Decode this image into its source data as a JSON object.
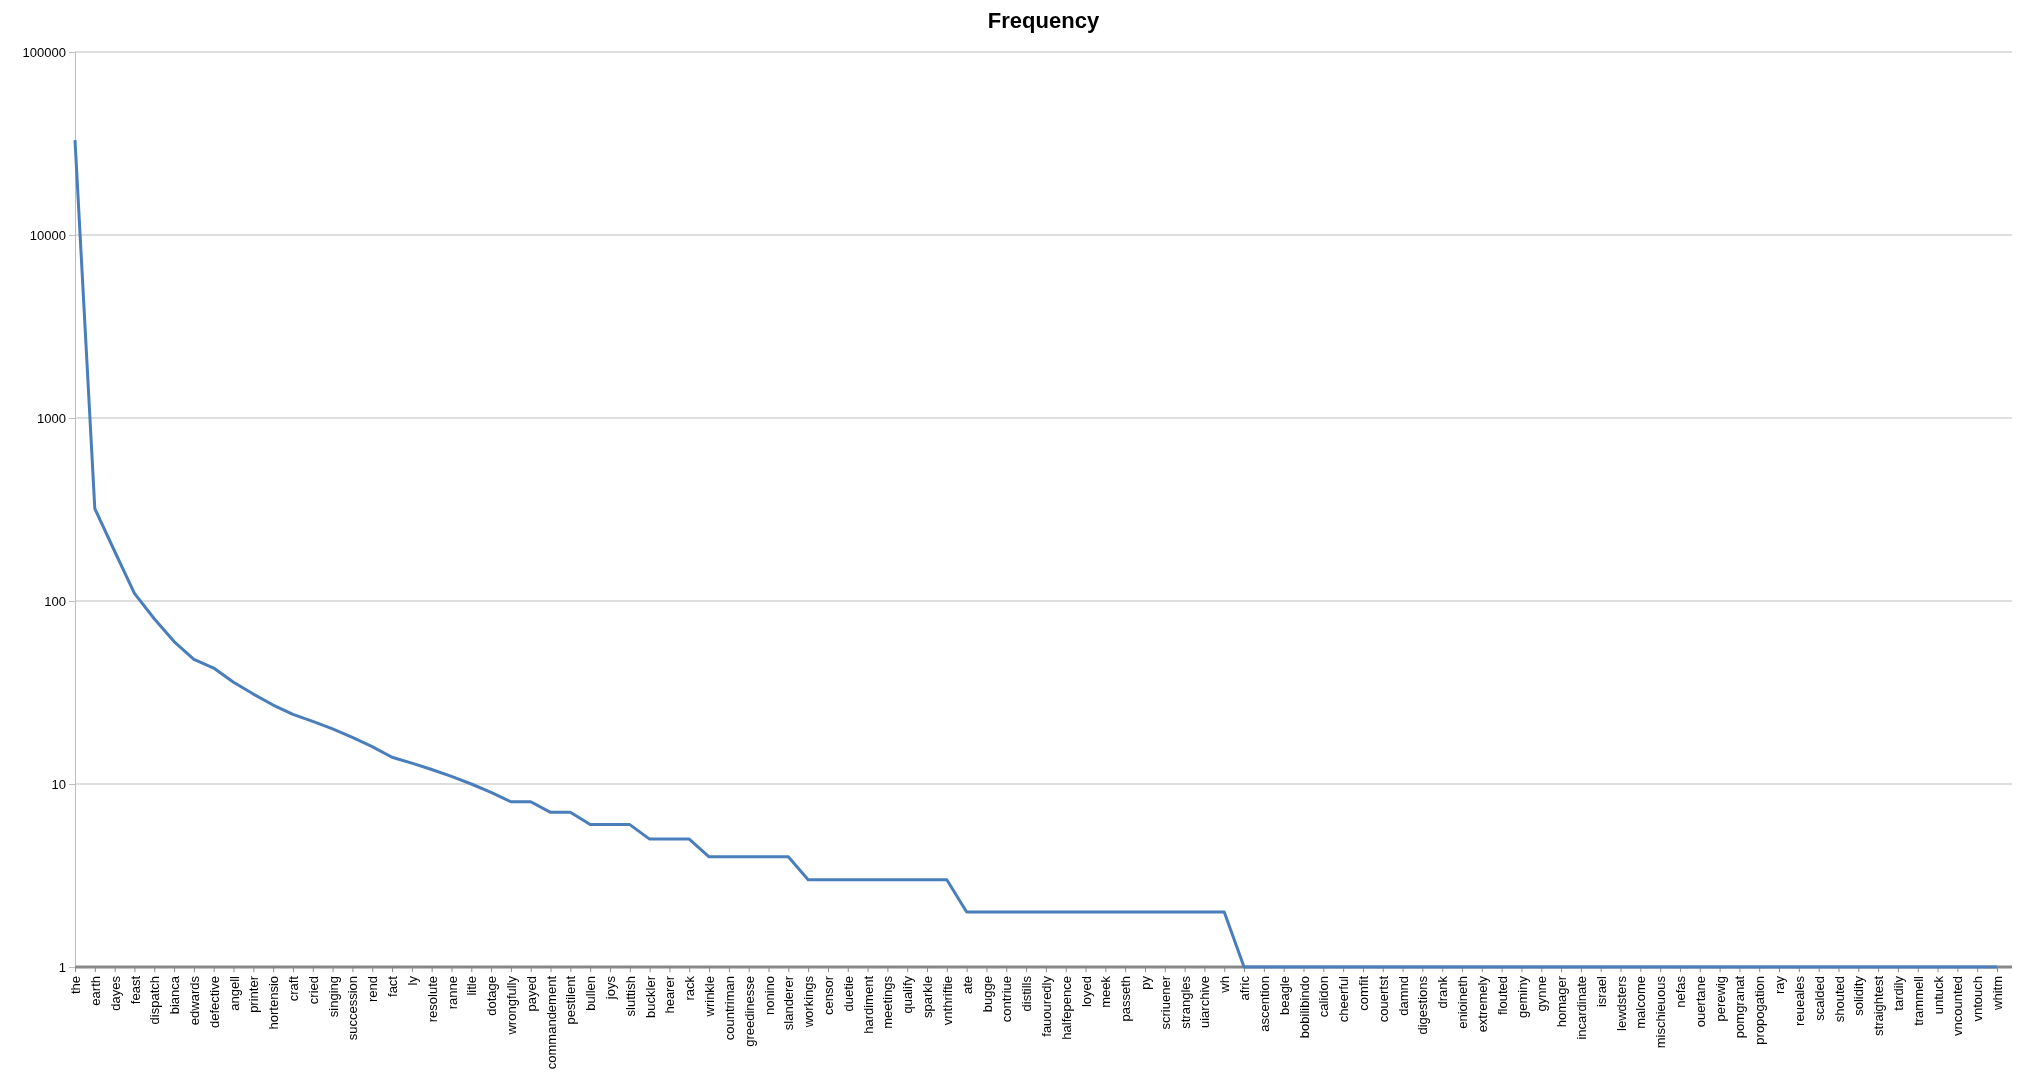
{
  "chart_data": {
    "type": "line",
    "title": "Frequency",
    "categories": [
      "the",
      "earth",
      "dayes",
      "feast",
      "dispatch",
      "bianca",
      "edwards",
      "defective",
      "angell",
      "printer",
      "hortensio",
      "craft",
      "cried",
      "singing",
      "succession",
      "rend",
      "fact",
      "ly",
      "resolute",
      "ranne",
      "litle",
      "dotage",
      "wrongfully",
      "payed",
      "commandement",
      "pestilent",
      "bullen",
      "joys",
      "sluttish",
      "buckler",
      "hearer",
      "rack",
      "wrinkle",
      "countriman",
      "greedinesse",
      "nonino",
      "slanderer",
      "workings",
      "censor",
      "duetie",
      "hardiment",
      "meetings",
      "qualify",
      "sparkle",
      "vnthriftie",
      "ate",
      "bugge",
      "contriue",
      "distills",
      "fauouredly",
      "halfepence",
      "loyed",
      "meek",
      "passeth",
      "py",
      "scriuener",
      "strangles",
      "uiarchive",
      "wh",
      "afric",
      "ascention",
      "beagle",
      "bobilibindo",
      "calidon",
      "cheerful",
      "comfit",
      "couertst",
      "damnd",
      "digestions",
      "drank",
      "enioineth",
      "extremely",
      "flouted",
      "geminy",
      "gynne",
      "homager",
      "incardinate",
      "israel",
      "lewdsters",
      "malcome",
      "mischieuous",
      "nefas",
      "ouertane",
      "perewig",
      "pomgranat",
      "propogation",
      "ray",
      "reueales",
      "scalded",
      "shouted",
      "solidity",
      "straightest",
      "tardily",
      "trammell",
      "untuck",
      "vncounted",
      "vntouch",
      "whitm"
    ],
    "series": [
      {
        "color": "#4a7ebb",
        "values": [
          33000,
          320,
          187,
          110,
          80,
          60,
          48,
          43,
          36,
          31,
          27,
          24,
          22,
          20,
          18,
          16,
          14,
          13,
          12,
          11,
          10,
          9,
          8,
          8,
          7,
          7,
          6,
          6,
          6,
          5,
          5,
          5,
          4,
          4,
          4,
          4,
          4,
          3,
          3,
          3,
          3,
          3,
          3,
          3,
          3,
          2,
          2,
          2,
          2,
          2,
          2,
          2,
          2,
          2,
          2,
          2,
          2,
          2,
          2,
          1,
          1,
          1,
          1,
          1,
          1,
          1,
          1,
          1,
          1,
          1,
          1,
          1,
          1,
          1,
          1,
          1,
          1,
          1,
          1,
          1,
          1,
          1,
          1,
          1,
          1,
          1,
          1,
          1,
          1,
          1,
          1,
          1,
          1,
          1,
          1,
          1,
          1,
          1
        ]
      }
    ],
    "log": true,
    "ylim": [
      1,
      100000
    ],
    "yticks": [
      1,
      10,
      100,
      1000,
      10000,
      100000
    ],
    "grid": "y"
  }
}
